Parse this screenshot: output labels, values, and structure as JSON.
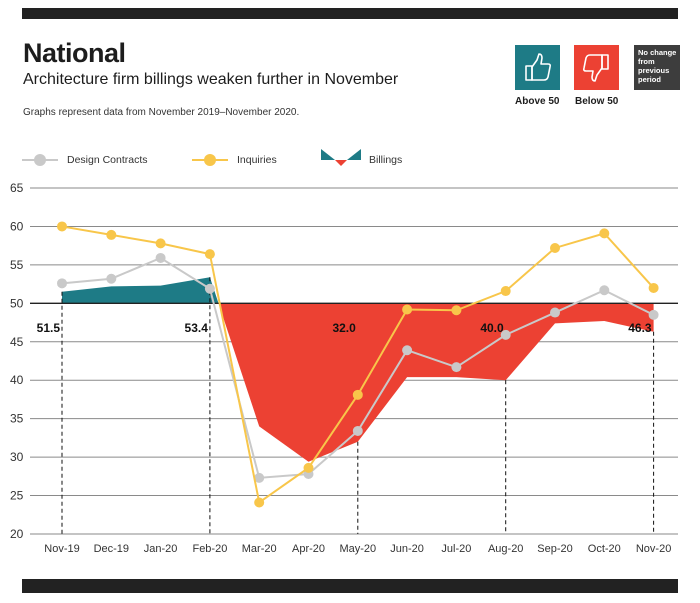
{
  "header": {
    "title": "National",
    "subtitle": "Architecture firm billings weaken further in November",
    "note": "Graphs represent data from November 2019–November 2020."
  },
  "badges": {
    "above": {
      "label": "Above 50",
      "color": "#1e7b86",
      "icon": "thumbs-up-icon"
    },
    "below": {
      "label": "Below 50",
      "color": "#ec4133",
      "icon": "thumbs-down-icon"
    },
    "nochange": {
      "line1": "No change",
      "line2": "from",
      "line3": "previous",
      "line4": "period",
      "color": "#3d3d3d"
    }
  },
  "legend": {
    "design": "Design Contracts",
    "inquiries": "Inquiries",
    "billings": "Billings"
  },
  "colors": {
    "design": "#c9c9c9",
    "inquiries": "#f8c64a",
    "above": "#1e7b86",
    "below": "#ec4133"
  },
  "chart_data": {
    "type": "line",
    "title": "National",
    "categories": [
      "Nov-19",
      "Dec-19",
      "Jan-20",
      "Feb-20",
      "Mar-20",
      "Apr-20",
      "May-20",
      "Jun-20",
      "Jul-20",
      "Aug-20",
      "Sep-20",
      "Oct-20",
      "Nov-20"
    ],
    "ylim": [
      20,
      65
    ],
    "yticks": [
      20,
      25,
      30,
      35,
      40,
      45,
      50,
      55,
      60,
      65
    ],
    "baseline": 50,
    "series": [
      {
        "name": "Design Contracts",
        "values": [
          52.6,
          53.2,
          55.9,
          51.9,
          27.3,
          27.8,
          33.4,
          43.9,
          41.7,
          45.9,
          48.8,
          51.7,
          48.5
        ]
      },
      {
        "name": "Inquiries",
        "values": [
          60.0,
          58.9,
          57.8,
          56.4,
          24.1,
          28.6,
          38.1,
          49.2,
          49.1,
          51.6,
          57.2,
          59.1,
          52.0
        ]
      },
      {
        "name": "Billings",
        "values": [
          51.5,
          52.2,
          52.3,
          53.4,
          34.0,
          29.4,
          32.0,
          40.4,
          40.4,
          40.0,
          47.4,
          47.7,
          46.3
        ]
      }
    ],
    "labels": [
      {
        "index": 0,
        "text": "51.5"
      },
      {
        "index": 3,
        "text": "53.4"
      },
      {
        "index": 6,
        "text": "32.0"
      },
      {
        "index": 9,
        "text": "40.0"
      },
      {
        "index": 12,
        "text": "46.3"
      }
    ]
  }
}
